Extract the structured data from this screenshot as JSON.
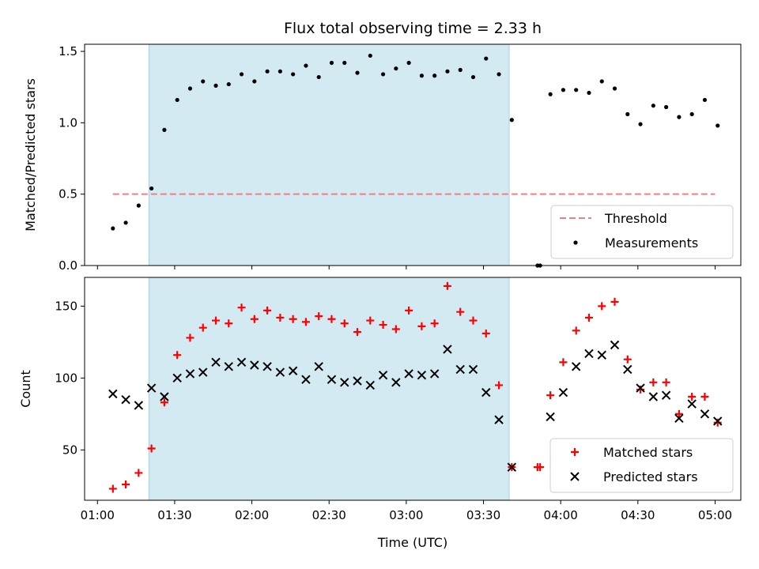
{
  "chart_data": [
    {
      "type": "scatter",
      "title": "Flux total observing time = 2.33 h",
      "xlabel": "",
      "ylabel": "Matched/Predicted stars",
      "xlim": [
        "00:55",
        "05:10"
      ],
      "ylim": [
        0,
        1.55
      ],
      "yticks": [
        0.0,
        0.5,
        1.0,
        1.5
      ],
      "ytick_labels": [
        "0.0",
        "0.5",
        "1.0",
        "1.5"
      ],
      "shaded_span": [
        "01:20",
        "03:40"
      ],
      "shaded_color": "#add8e6",
      "legend_position": "lower-right",
      "threshold": {
        "name": "Threshold",
        "value": 0.5,
        "x_range": [
          "01:06",
          "05:00"
        ],
        "color": "#f08080"
      },
      "series": [
        {
          "name": "Measurements",
          "color": "#000000",
          "points": [
            [
              "01:06",
              0.26
            ],
            [
              "01:11",
              0.3
            ],
            [
              "01:16",
              0.42
            ],
            [
              "01:21",
              0.54
            ],
            [
              "01:26",
              0.95
            ],
            [
              "01:31",
              1.16
            ],
            [
              "01:36",
              1.24
            ],
            [
              "01:41",
              1.29
            ],
            [
              "01:46",
              1.26
            ],
            [
              "01:51",
              1.27
            ],
            [
              "01:56",
              1.34
            ],
            [
              "02:01",
              1.29
            ],
            [
              "02:06",
              1.36
            ],
            [
              "02:11",
              1.36
            ],
            [
              "02:16",
              1.34
            ],
            [
              "02:21",
              1.4
            ],
            [
              "02:26",
              1.32
            ],
            [
              "02:31",
              1.42
            ],
            [
              "02:36",
              1.42
            ],
            [
              "02:41",
              1.35
            ],
            [
              "02:46",
              1.47
            ],
            [
              "02:51",
              1.34
            ],
            [
              "02:56",
              1.38
            ],
            [
              "03:01",
              1.42
            ],
            [
              "03:06",
              1.33
            ],
            [
              "03:11",
              1.33
            ],
            [
              "03:16",
              1.36
            ],
            [
              "03:21",
              1.37
            ],
            [
              "03:26",
              1.32
            ],
            [
              "03:31",
              1.45
            ],
            [
              "03:36",
              1.34
            ],
            [
              "03:41",
              1.02
            ],
            [
              "03:51",
              0.0
            ],
            [
              "03:52",
              0.0
            ],
            [
              "03:56",
              1.2
            ],
            [
              "04:01",
              1.23
            ],
            [
              "04:06",
              1.23
            ],
            [
              "04:11",
              1.21
            ],
            [
              "04:16",
              1.29
            ],
            [
              "04:21",
              1.24
            ],
            [
              "04:26",
              1.06
            ],
            [
              "04:31",
              0.99
            ],
            [
              "04:36",
              1.12
            ],
            [
              "04:41",
              1.11
            ],
            [
              "04:46",
              1.04
            ],
            [
              "04:51",
              1.06
            ],
            [
              "04:56",
              1.16
            ],
            [
              "05:01",
              0.98
            ]
          ]
        }
      ]
    },
    {
      "type": "scatter",
      "title": "",
      "xlabel": "Time (UTC)",
      "ylabel": "Count",
      "xlim": [
        "00:55",
        "05:10"
      ],
      "ylim": [
        15,
        170
      ],
      "yticks": [
        50,
        100,
        150
      ],
      "xticks": [
        "01:00",
        "01:30",
        "02:00",
        "02:30",
        "03:00",
        "03:30",
        "04:00",
        "04:30",
        "05:00"
      ],
      "shaded_span": [
        "01:20",
        "03:40"
      ],
      "shaded_color": "#add8e6",
      "legend_position": "lower-right",
      "series": [
        {
          "name": "Matched stars",
          "marker": "plus",
          "color": "#ff0000",
          "points": [
            [
              "01:06",
              23
            ],
            [
              "01:11",
              26
            ],
            [
              "01:16",
              34
            ],
            [
              "01:21",
              51
            ],
            [
              "01:26",
              83
            ],
            [
              "01:31",
              116
            ],
            [
              "01:36",
              128
            ],
            [
              "01:41",
              135
            ],
            [
              "01:46",
              140
            ],
            [
              "01:51",
              138
            ],
            [
              "01:56",
              149
            ],
            [
              "02:01",
              141
            ],
            [
              "02:06",
              147
            ],
            [
              "02:11",
              142
            ],
            [
              "02:16",
              141
            ],
            [
              "02:21",
              139
            ],
            [
              "02:26",
              143
            ],
            [
              "02:31",
              141
            ],
            [
              "02:36",
              138
            ],
            [
              "02:41",
              132
            ],
            [
              "02:46",
              140
            ],
            [
              "02:51",
              137
            ],
            [
              "02:56",
              134
            ],
            [
              "03:01",
              147
            ],
            [
              "03:06",
              136
            ],
            [
              "03:11",
              138
            ],
            [
              "03:16",
              164
            ],
            [
              "03:21",
              146
            ],
            [
              "03:26",
              140
            ],
            [
              "03:31",
              131
            ],
            [
              "03:36",
              95
            ],
            [
              "03:41",
              38
            ],
            [
              "03:51",
              38
            ],
            [
              "03:52",
              38
            ],
            [
              "03:56",
              88
            ],
            [
              "04:01",
              111
            ],
            [
              "04:06",
              133
            ],
            [
              "04:11",
              142
            ],
            [
              "04:16",
              150
            ],
            [
              "04:21",
              153
            ],
            [
              "04:26",
              113
            ],
            [
              "04:31",
              92
            ],
            [
              "04:36",
              97
            ],
            [
              "04:41",
              97
            ],
            [
              "04:46",
              75
            ],
            [
              "04:51",
              87
            ],
            [
              "04:56",
              87
            ],
            [
              "05:01",
              69
            ]
          ]
        },
        {
          "name": "Predicted stars",
          "marker": "x",
          "color": "#000000",
          "points": [
            [
              "01:06",
              89
            ],
            [
              "01:11",
              85
            ],
            [
              "01:16",
              81
            ],
            [
              "01:21",
              93
            ],
            [
              "01:26",
              87
            ],
            [
              "01:31",
              100
            ],
            [
              "01:36",
              103
            ],
            [
              "01:41",
              104
            ],
            [
              "01:46",
              111
            ],
            [
              "01:51",
              108
            ],
            [
              "01:56",
              111
            ],
            [
              "02:01",
              109
            ],
            [
              "02:06",
              108
            ],
            [
              "02:11",
              104
            ],
            [
              "02:16",
              105
            ],
            [
              "02:21",
              99
            ],
            [
              "02:26",
              108
            ],
            [
              "02:31",
              99
            ],
            [
              "02:36",
              97
            ],
            [
              "02:41",
              98
            ],
            [
              "02:46",
              95
            ],
            [
              "02:51",
              102
            ],
            [
              "02:56",
              97
            ],
            [
              "03:01",
              103
            ],
            [
              "03:06",
              102
            ],
            [
              "03:11",
              103
            ],
            [
              "03:16",
              120
            ],
            [
              "03:21",
              106
            ],
            [
              "03:26",
              106
            ],
            [
              "03:31",
              90
            ],
            [
              "03:36",
              71
            ],
            [
              "03:41",
              38
            ],
            [
              "03:56",
              73
            ],
            [
              "04:01",
              90
            ],
            [
              "04:06",
              108
            ],
            [
              "04:11",
              117
            ],
            [
              "04:16",
              116
            ],
            [
              "04:21",
              123
            ],
            [
              "04:26",
              106
            ],
            [
              "04:31",
              93
            ],
            [
              "04:36",
              87
            ],
            [
              "04:41",
              88
            ],
            [
              "04:46",
              72
            ],
            [
              "04:51",
              82
            ],
            [
              "04:56",
              75
            ],
            [
              "05:01",
              70
            ]
          ]
        }
      ]
    }
  ]
}
